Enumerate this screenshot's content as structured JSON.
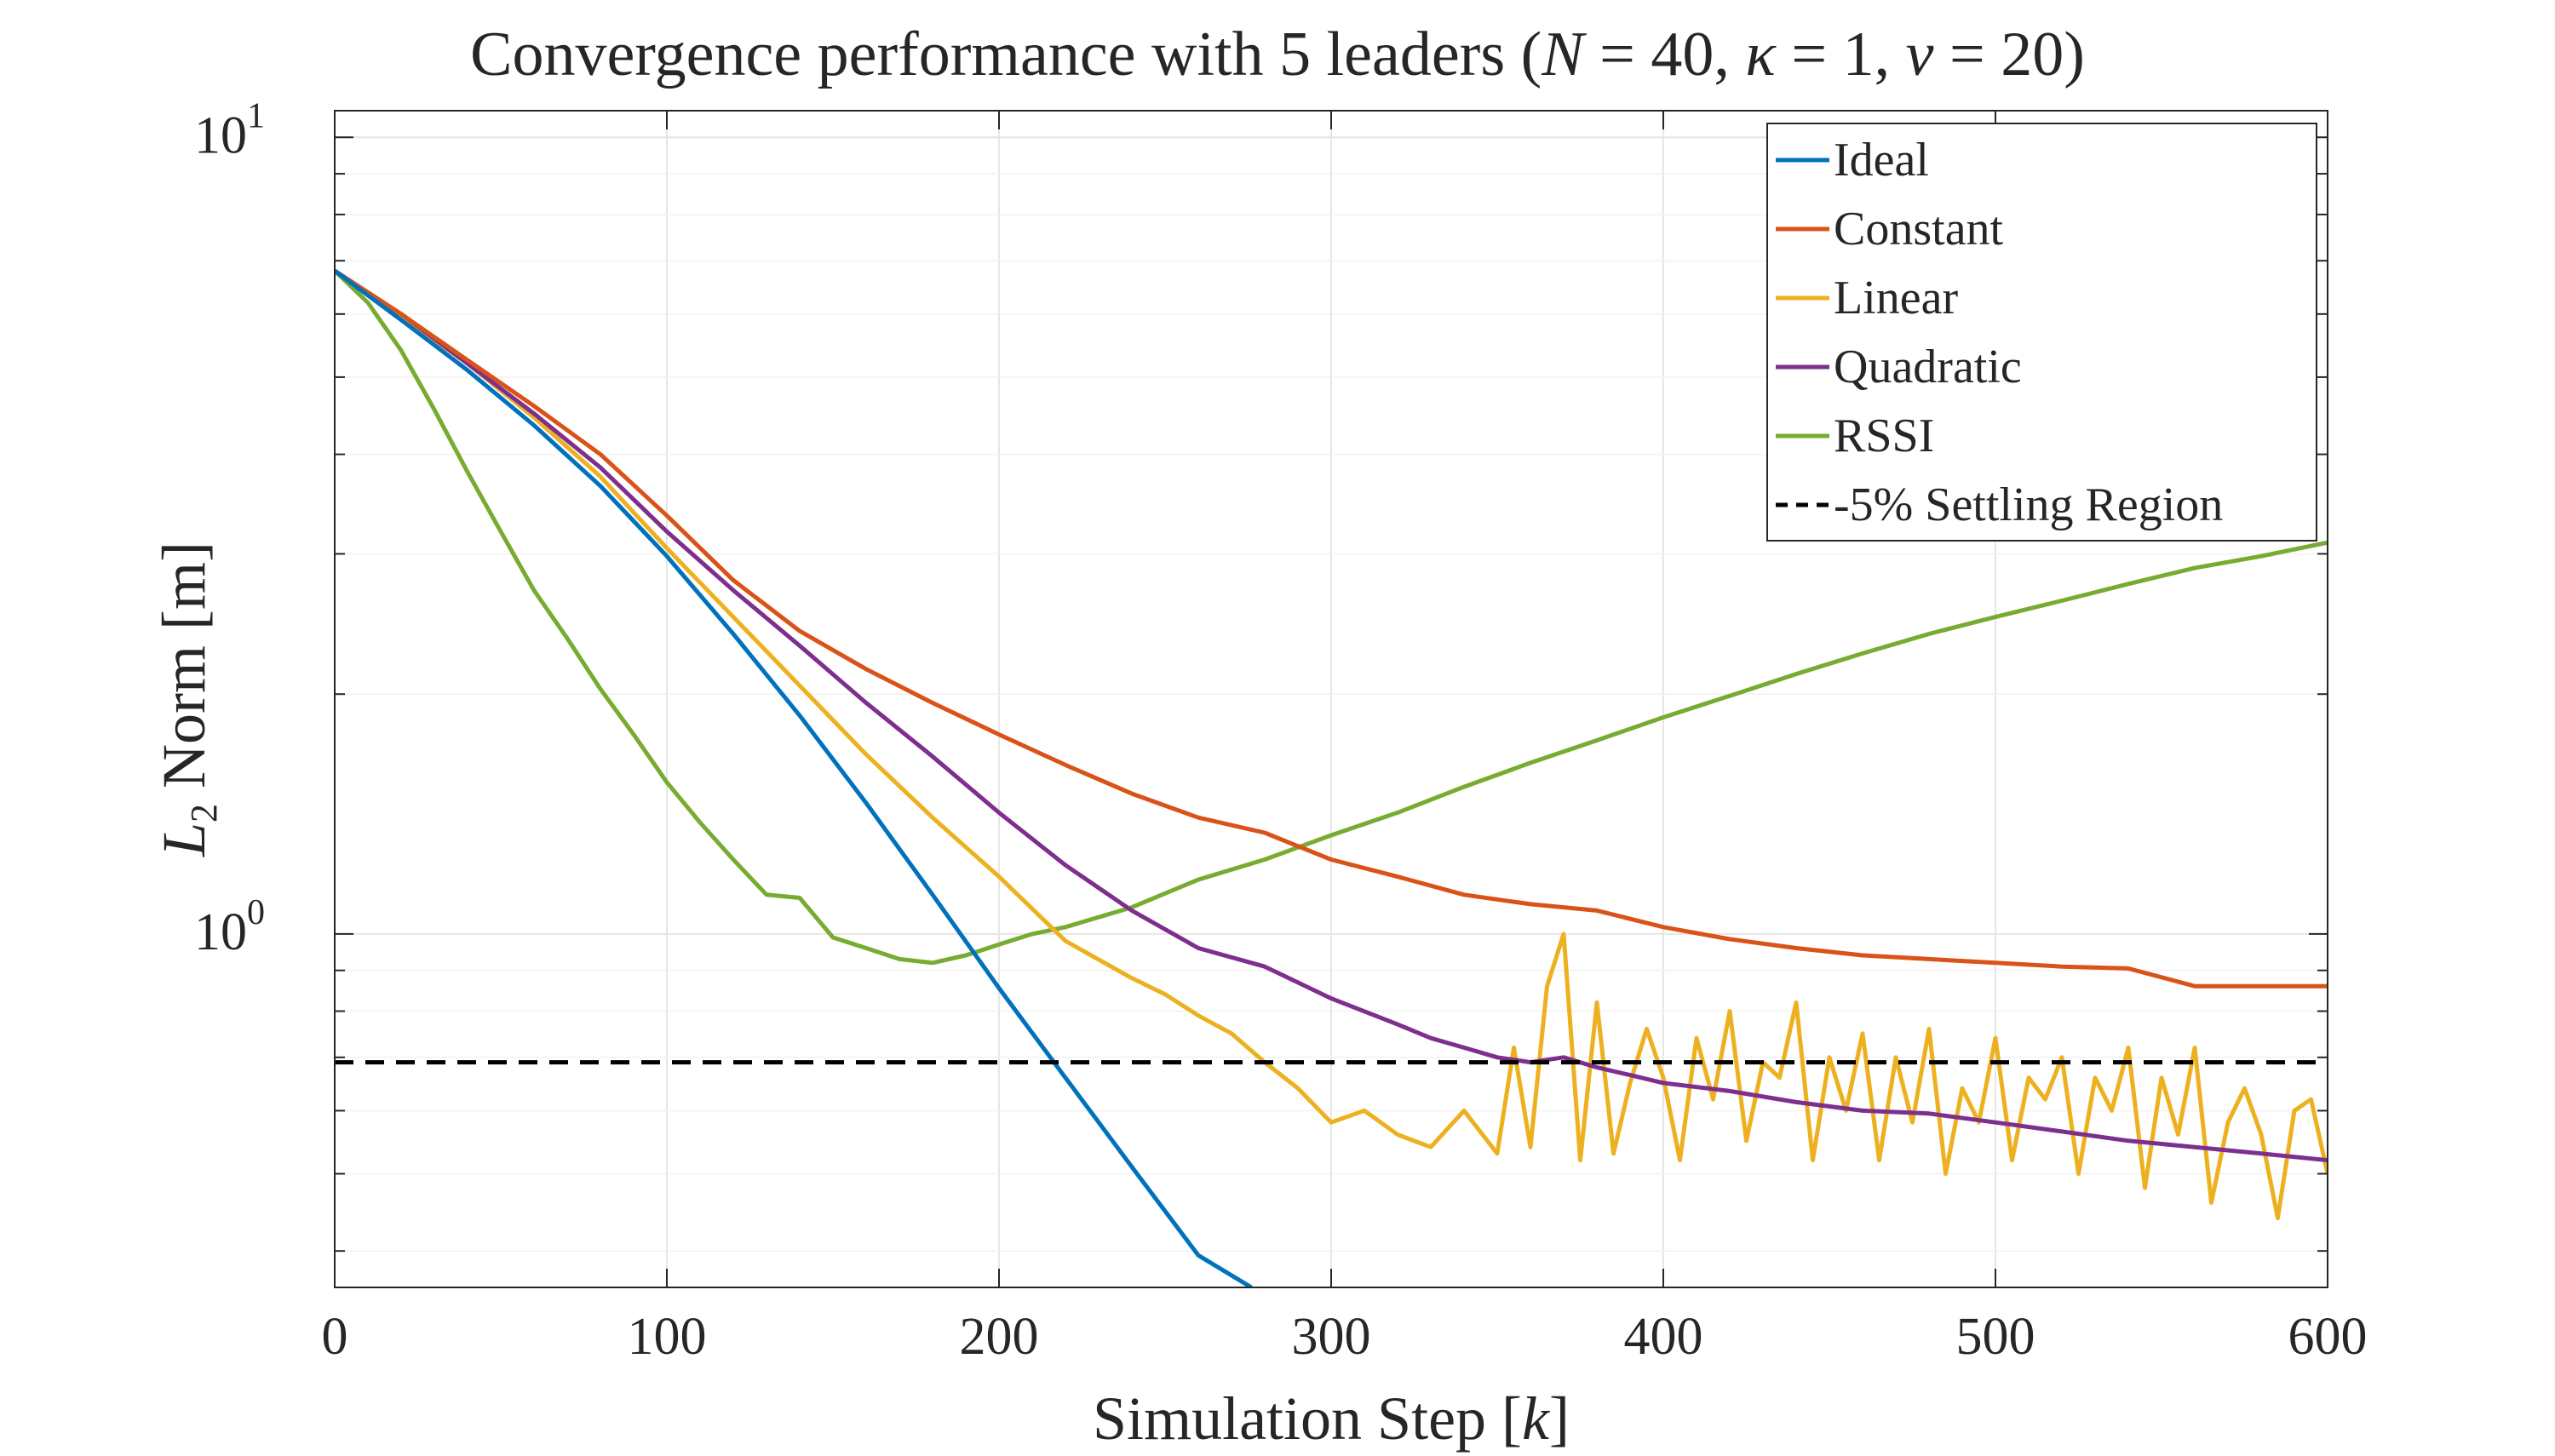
{
  "chart_data": {
    "type": "line",
    "title": "Convergence performance with 5 leaders (N = 40, κ = 1, ν = 20)",
    "title_parts": {
      "prefix": "Convergence performance with 5 leaders (",
      "N": "N",
      "N_eq": " = 40, ",
      "kappa": "κ",
      "kappa_eq": " = 1, ",
      "nu": "ν",
      "nu_eq": " = 20)"
    },
    "xlabel": "Simulation Step [k]",
    "xlabel_parts": {
      "main": "Simulation Step [",
      "var": "k",
      "end": "]"
    },
    "ylabel": "L2 Norm [m]",
    "ylabel_parts": {
      "var": "L",
      "sub": "2",
      "rest": " Norm [m]"
    },
    "xlim": [
      0,
      600
    ],
    "ylim": [
      0.36,
      10.8
    ],
    "yscale": "log",
    "xticks": [
      0,
      100,
      200,
      300,
      400,
      500,
      600
    ],
    "xtick_labels": [
      "0",
      "100",
      "200",
      "300",
      "400",
      "500",
      "600"
    ],
    "yticks": [
      1,
      10
    ],
    "ytick_labels": [
      {
        "base": "10",
        "exp": "0"
      },
      {
        "base": "10",
        "exp": "1"
      }
    ],
    "grid": true,
    "legend_position": "top-right",
    "series": [
      {
        "name": "Ideal",
        "color": "#0072BD",
        "x": [
          0,
          20,
          40,
          60,
          80,
          100,
          120,
          140,
          160,
          180,
          200,
          220,
          240,
          260,
          276
        ],
        "y": [
          6.8,
          5.9,
          5.1,
          4.35,
          3.65,
          2.98,
          2.38,
          1.88,
          1.46,
          1.12,
          0.855,
          0.66,
          0.51,
          0.395,
          0.36
        ]
      },
      {
        "name": "Constant",
        "color": "#D95319",
        "x": [
          0,
          20,
          40,
          60,
          80,
          100,
          120,
          140,
          160,
          180,
          200,
          220,
          240,
          260,
          280,
          300,
          320,
          340,
          360,
          380,
          400,
          420,
          440,
          460,
          480,
          500,
          520,
          540,
          560,
          580,
          600
        ],
        "y": [
          6.8,
          6.0,
          5.25,
          4.6,
          4.0,
          3.35,
          2.78,
          2.4,
          2.15,
          1.95,
          1.78,
          1.63,
          1.5,
          1.4,
          1.34,
          1.24,
          1.18,
          1.12,
          1.09,
          1.07,
          1.02,
          0.985,
          0.96,
          0.94,
          0.93,
          0.92,
          0.91,
          0.905,
          0.86,
          0.86,
          0.86
        ]
      },
      {
        "name": "Linear",
        "color": "#EDB120",
        "x": [
          0,
          20,
          40,
          60,
          80,
          100,
          120,
          140,
          160,
          180,
          200,
          220,
          240,
          250,
          260,
          270,
          280,
          290,
          300,
          310,
          320,
          330,
          340,
          350,
          355,
          360,
          365,
          370,
          375,
          380,
          385,
          390,
          395,
          400,
          405,
          410,
          415,
          420,
          425,
          430,
          435,
          440,
          445,
          450,
          455,
          460,
          465,
          470,
          475,
          480,
          485,
          490,
          495,
          500,
          505,
          510,
          515,
          520,
          525,
          530,
          535,
          540,
          545,
          550,
          555,
          560,
          565,
          570,
          575,
          580,
          585,
          590,
          595,
          600
        ],
        "y": [
          6.8,
          5.95,
          5.2,
          4.45,
          3.75,
          3.05,
          2.5,
          2.05,
          1.68,
          1.4,
          1.18,
          0.98,
          0.88,
          0.84,
          0.79,
          0.75,
          0.69,
          0.64,
          0.58,
          0.6,
          0.56,
          0.54,
          0.6,
          0.53,
          0.72,
          0.54,
          0.86,
          1.0,
          0.52,
          0.82,
          0.53,
          0.65,
          0.76,
          0.66,
          0.52,
          0.74,
          0.62,
          0.8,
          0.55,
          0.69,
          0.66,
          0.82,
          0.52,
          0.7,
          0.6,
          0.75,
          0.52,
          0.7,
          0.58,
          0.76,
          0.5,
          0.64,
          0.58,
          0.74,
          0.52,
          0.66,
          0.62,
          0.7,
          0.5,
          0.66,
          0.6,
          0.72,
          0.48,
          0.66,
          0.56,
          0.72,
          0.46,
          0.58,
          0.64,
          0.56,
          0.44,
          0.6,
          0.62,
          0.5
        ]
      },
      {
        "name": "Quadratic",
        "color": "#7E2F8E",
        "x": [
          0,
          20,
          40,
          60,
          80,
          100,
          120,
          140,
          160,
          180,
          200,
          220,
          240,
          260,
          280,
          300,
          320,
          330,
          340,
          350,
          360,
          370,
          380,
          390,
          400,
          420,
          440,
          460,
          480,
          500,
          520,
          540,
          560,
          580,
          600
        ],
        "y": [
          6.8,
          6.0,
          5.2,
          4.5,
          3.85,
          3.2,
          2.7,
          2.3,
          1.95,
          1.67,
          1.42,
          1.22,
          1.07,
          0.96,
          0.91,
          0.83,
          0.77,
          0.74,
          0.72,
          0.7,
          0.69,
          0.7,
          0.68,
          0.665,
          0.65,
          0.635,
          0.615,
          0.6,
          0.595,
          0.58,
          0.565,
          0.55,
          0.54,
          0.53,
          0.52
        ]
      },
      {
        "name": "RSSI",
        "color": "#77AC30",
        "x": [
          0,
          10,
          20,
          30,
          40,
          50,
          60,
          70,
          80,
          90,
          100,
          110,
          120,
          130,
          140,
          150,
          160,
          170,
          180,
          190,
          200,
          210,
          220,
          240,
          260,
          280,
          300,
          320,
          340,
          360,
          380,
          400,
          420,
          440,
          460,
          480,
          500,
          520,
          540,
          560,
          580,
          600
        ],
        "y": [
          6.8,
          6.2,
          5.4,
          4.55,
          3.8,
          3.2,
          2.7,
          2.35,
          2.03,
          1.78,
          1.55,
          1.38,
          1.24,
          1.12,
          1.11,
          0.99,
          0.96,
          0.93,
          0.92,
          0.94,
          0.97,
          1.0,
          1.02,
          1.08,
          1.17,
          1.24,
          1.33,
          1.42,
          1.53,
          1.64,
          1.75,
          1.87,
          1.99,
          2.12,
          2.25,
          2.38,
          2.5,
          2.62,
          2.75,
          2.88,
          2.98,
          3.1
        ]
      }
    ],
    "reference_line": {
      "name": "-5% Settling Region",
      "color": "#000000",
      "style": "dashed",
      "y": 0.69
    }
  }
}
